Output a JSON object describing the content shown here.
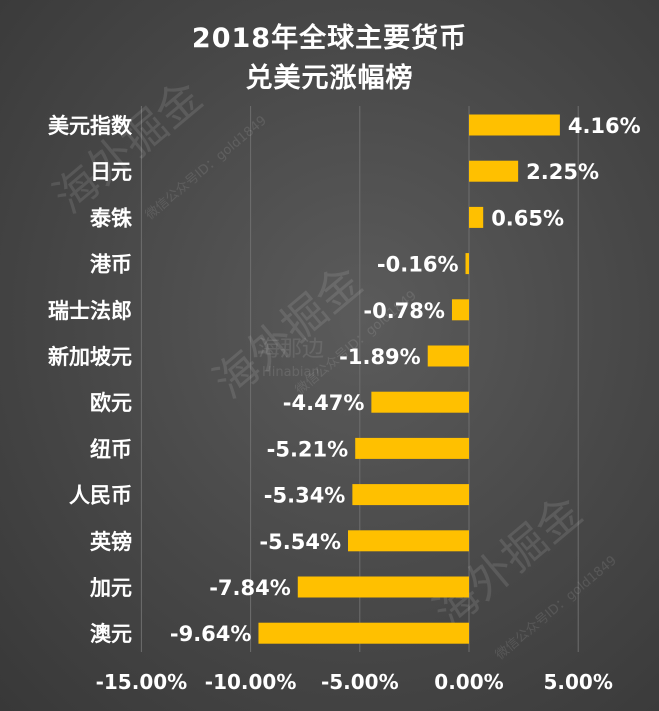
{
  "chart_data": {
    "type": "bar",
    "orientation": "horizontal",
    "title": "2018年全球主要货币\n兑美元涨幅榜",
    "title_lines": [
      "2018年全球主要货币",
      "兑美元涨幅榜"
    ],
    "categories": [
      "美元指数",
      "日元",
      "泰铢",
      "港币",
      "瑞士法郎",
      "新加坡元",
      "欧元",
      "纽币",
      "人民币",
      "英镑",
      "加元",
      "澳元"
    ],
    "values": [
      4.16,
      2.25,
      0.65,
      -0.16,
      -0.78,
      -1.89,
      -4.47,
      -5.21,
      -5.34,
      -5.54,
      -7.84,
      -9.64
    ],
    "data_labels": [
      "4.16%",
      "2.25%",
      "0.65%",
      "-0.16%",
      "-0.78%",
      "-1.89%",
      "-4.47%",
      "-5.21%",
      "-5.34%",
      "-5.54%",
      "-7.84%",
      "-9.64%"
    ],
    "xlim": [
      -15,
      5
    ],
    "x_ticks": [
      -15,
      -10,
      -5,
      0,
      5
    ],
    "x_tick_labels": [
      "-15.00%",
      "-10.00%",
      "-5.00%",
      "0.00%",
      "5.00%"
    ],
    "grid": "vertical",
    "legend": "none",
    "xlabel": "",
    "ylabel": ""
  },
  "watermarks": [
    "海外掘金",
    "微信公众号ID：gold1849",
    "海那边",
    "Hinabian"
  ],
  "colors": {
    "bar": "#FFC000",
    "text": "#FFFFFF",
    "grid": "#6E6E6E",
    "background": "#474747"
  }
}
